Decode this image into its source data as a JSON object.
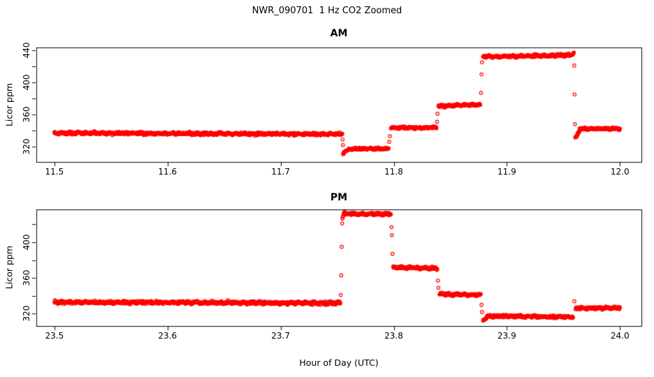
{
  "figure": {
    "title": "NWR_090701  1 Hz CO2 Zoomed",
    "xlabel": "Hour of Day (UTC)",
    "background_color": "#FFFFFF",
    "axis_color": "#000000",
    "point_color": "#FF0000"
  },
  "chart_data": [
    {
      "type": "scatter",
      "title": "AM",
      "ylabel": "Licor ppm",
      "marker": "open-circle",
      "color": "#FF0000",
      "sample_rate_hz": 1,
      "xlim": [
        11.484,
        12.019
      ],
      "ylim": [
        300.9,
        443.5
      ],
      "xticks": [
        11.5,
        11.6,
        11.7,
        11.8,
        11.9,
        12.0
      ],
      "xtick_labels": [
        "11.5",
        "11.6",
        "11.7",
        "11.8",
        "11.9",
        "12.0"
      ],
      "yticks": [
        320,
        340,
        360,
        380,
        400,
        420,
        440
      ],
      "ytick_labeled": [
        320,
        360,
        400,
        440
      ],
      "ytick_labels": [
        "320",
        "360",
        "400",
        "440"
      ],
      "segments": [
        {
          "x0": 11.5,
          "x1": 11.7545,
          "y0": 337.0,
          "y1": 335.5,
          "noise": 1.2
        },
        {
          "x0": 11.7552,
          "x1": 11.76,
          "y0": 311.5,
          "y1": 316.5,
          "noise": 1.0
        },
        {
          "x0": 11.76,
          "x1": 11.7955,
          "y0": 317.3,
          "y1": 317.3,
          "noise": 1.0
        },
        {
          "x0": 11.7975,
          "x1": 11.8378,
          "y0": 343.5,
          "y1": 343.5,
          "noise": 1.0
        },
        {
          "x0": 11.8395,
          "x1": 11.8765,
          "y0": 370.5,
          "y1": 372.5,
          "noise": 1.0
        },
        {
          "x0": 11.879,
          "x1": 11.957,
          "y0": 432.0,
          "y1": 434.0,
          "noise": 1.1
        },
        {
          "x0": 11.9572,
          "x1": 11.9593,
          "y0": 434.5,
          "y1": 437.0,
          "noise": 0.8
        },
        {
          "x0": 11.9605,
          "x1": 11.9645,
          "y0": 331.0,
          "y1": 340.5,
          "noise": 1.2
        },
        {
          "x0": 11.9645,
          "x1": 12.0,
          "y0": 342.5,
          "y1": 342.5,
          "noise": 1.0
        }
      ],
      "transitions": [
        {
          "x": 11.7548,
          "y": 329
        },
        {
          "x": 11.7551,
          "y": 322
        },
        {
          "x": 11.796,
          "y": 326
        },
        {
          "x": 11.7966,
          "y": 333
        },
        {
          "x": 11.8383,
          "y": 351
        },
        {
          "x": 11.8387,
          "y": 361
        },
        {
          "x": 11.8772,
          "y": 387
        },
        {
          "x": 11.8776,
          "y": 410
        },
        {
          "x": 11.878,
          "y": 425
        },
        {
          "x": 11.9596,
          "y": 421
        },
        {
          "x": 11.9599,
          "y": 385
        },
        {
          "x": 11.9602,
          "y": 348
        }
      ]
    },
    {
      "type": "scatter",
      "title": "PM",
      "ylabel": "Licor ppm",
      "marker": "open-circle",
      "color": "#FF0000",
      "sample_rate_hz": 1,
      "xlim": [
        23.484,
        24.019
      ],
      "ylim": [
        306.3,
        436.7
      ],
      "xticks": [
        23.5,
        23.6,
        23.7,
        23.8,
        23.9,
        24.0
      ],
      "xtick_labels": [
        "23.5",
        "23.6",
        "23.7",
        "23.8",
        "23.9",
        "24.0"
      ],
      "yticks": [
        320,
        340,
        360,
        380,
        400,
        420
      ],
      "ytick_labeled": [
        320,
        360,
        400
      ],
      "ytick_labels": [
        "320",
        "360",
        "400"
      ],
      "segments": [
        {
          "x0": 23.5,
          "x1": 23.7528,
          "y0": 333.0,
          "y1": 332.0,
          "noise": 1.2
        },
        {
          "x0": 23.7546,
          "x1": 23.7565,
          "y0": 428.0,
          "y1": 433.5,
          "noise": 0.8
        },
        {
          "x0": 23.7565,
          "x1": 23.7975,
          "y0": 431.5,
          "y1": 431.5,
          "noise": 1.1
        },
        {
          "x0": 23.7995,
          "x1": 23.8385,
          "y0": 372.0,
          "y1": 371.0,
          "noise": 1.0
        },
        {
          "x0": 23.8405,
          "x1": 23.877,
          "y0": 342.0,
          "y1": 341.0,
          "noise": 1.0
        },
        {
          "x0": 23.879,
          "x1": 23.8832,
          "y0": 313.0,
          "y1": 316.5,
          "noise": 1.0
        },
        {
          "x0": 23.8832,
          "x1": 23.9585,
          "y0": 317.5,
          "y1": 316.5,
          "noise": 1.0
        },
        {
          "x0": 23.9608,
          "x1": 24.0,
          "y0": 326.5,
          "y1": 326.5,
          "noise": 1.0
        }
      ],
      "transitions": [
        {
          "x": 23.7532,
          "y": 341
        },
        {
          "x": 23.7536,
          "y": 363
        },
        {
          "x": 23.754,
          "y": 395
        },
        {
          "x": 23.7544,
          "y": 421
        },
        {
          "x": 23.798,
          "y": 417
        },
        {
          "x": 23.7984,
          "y": 408
        },
        {
          "x": 23.7989,
          "y": 387
        },
        {
          "x": 23.8391,
          "y": 357
        },
        {
          "x": 23.8395,
          "y": 349
        },
        {
          "x": 23.8776,
          "y": 330
        },
        {
          "x": 23.878,
          "y": 322
        },
        {
          "x": 23.9597,
          "y": 334
        }
      ]
    }
  ]
}
